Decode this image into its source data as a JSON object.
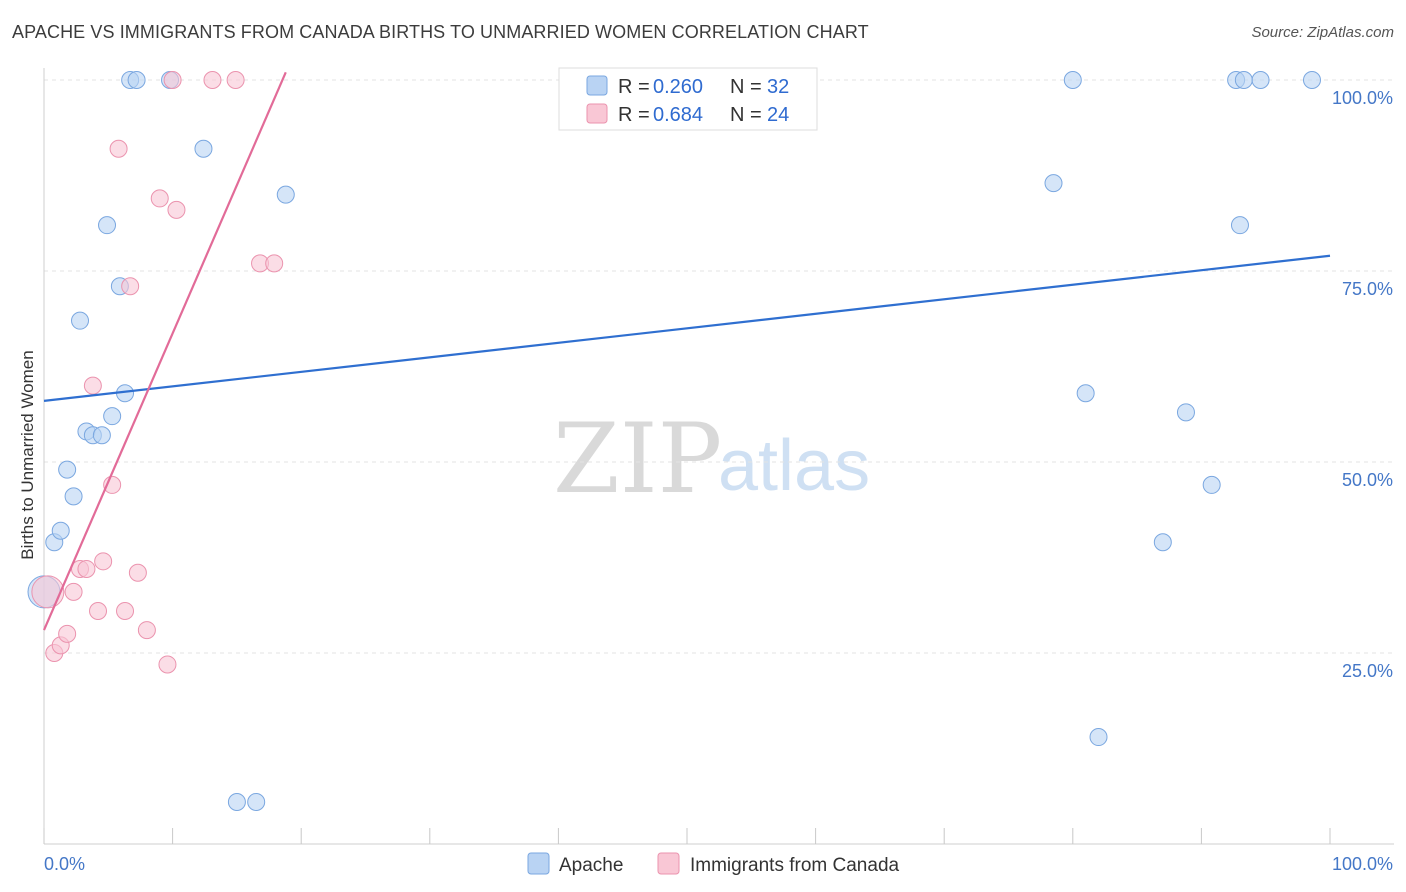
{
  "title": "APACHE VS IMMIGRANTS FROM CANADA BIRTHS TO UNMARRIED WOMEN CORRELATION CHART",
  "source": "Source: ZipAtlas.com",
  "watermark": {
    "zip": "ZIP",
    "atlas": "atlas"
  },
  "colors": {
    "apache_fill": "#b9d3f3",
    "apache_stroke": "#7aa7e0",
    "apache_line": "#2f6fd0",
    "canada_fill": "#f9c7d5",
    "canada_stroke": "#eb93ae",
    "canada_line": "#e26b98"
  },
  "legend": {
    "apache": {
      "r_label": "R =",
      "r_value": "0.260",
      "n_label": "N =",
      "n_value": "32"
    },
    "canada": {
      "r_label": "R =",
      "r_value": "0.684",
      "n_label": "N =",
      "n_value": "24"
    }
  },
  "chart_data": {
    "type": "scatter",
    "title": "APACHE VS IMMIGRANTS FROM CANADA BIRTHS TO UNMARRIED WOMEN CORRELATION CHART",
    "xlabel": "",
    "ylabel": "Births to Unmarried Women",
    "xlim": [
      0,
      100
    ],
    "ylim": [
      0,
      102
    ],
    "x_tick_labels": [
      "0.0%",
      "100.0%"
    ],
    "y_tick_values": [
      25,
      50,
      75,
      100
    ],
    "y_tick_labels": [
      "25.0%",
      "50.0%",
      "75.0%",
      "100.0%"
    ],
    "grid": true,
    "series": [
      {
        "name": "Apache",
        "points": [
          {
            "x": 0.0,
            "y": 33.0
          },
          {
            "x": 0.8,
            "y": 39.5
          },
          {
            "x": 1.3,
            "y": 41.0
          },
          {
            "x": 1.8,
            "y": 49.0
          },
          {
            "x": 2.3,
            "y": 45.5
          },
          {
            "x": 2.8,
            "y": 68.5
          },
          {
            "x": 3.3,
            "y": 54.0
          },
          {
            "x": 3.8,
            "y": 53.5
          },
          {
            "x": 4.5,
            "y": 53.5
          },
          {
            "x": 4.9,
            "y": 81.0
          },
          {
            "x": 5.3,
            "y": 56.0
          },
          {
            "x": 5.9,
            "y": 73.0
          },
          {
            "x": 6.3,
            "y": 59.0
          },
          {
            "x": 6.7,
            "y": 100.0
          },
          {
            "x": 7.2,
            "y": 100.0
          },
          {
            "x": 9.8,
            "y": 100.0
          },
          {
            "x": 12.4,
            "y": 91.0
          },
          {
            "x": 15.0,
            "y": 5.5
          },
          {
            "x": 16.5,
            "y": 5.5
          },
          {
            "x": 18.8,
            "y": 85.0
          },
          {
            "x": 78.5,
            "y": 86.5
          },
          {
            "x": 80.0,
            "y": 100.0
          },
          {
            "x": 81.0,
            "y": 59.0
          },
          {
            "x": 82.0,
            "y": 14.0
          },
          {
            "x": 87.0,
            "y": 39.5
          },
          {
            "x": 88.8,
            "y": 56.5
          },
          {
            "x": 90.8,
            "y": 47.0
          },
          {
            "x": 92.7,
            "y": 100.0
          },
          {
            "x": 93.0,
            "y": 81.0
          },
          {
            "x": 93.3,
            "y": 100.0
          },
          {
            "x": 94.6,
            "y": 100.0
          },
          {
            "x": 98.6,
            "y": 100.0
          }
        ],
        "trend": {
          "x": [
            0,
            100
          ],
          "y": [
            58,
            77
          ]
        }
      },
      {
        "name": "Immigrants from Canada",
        "points": [
          {
            "x": 0.3,
            "y": 33.0
          },
          {
            "x": 0.8,
            "y": 25.0
          },
          {
            "x": 1.3,
            "y": 26.0
          },
          {
            "x": 1.8,
            "y": 27.5
          },
          {
            "x": 2.3,
            "y": 33.0
          },
          {
            "x": 2.8,
            "y": 36.0
          },
          {
            "x": 3.3,
            "y": 36.0
          },
          {
            "x": 3.8,
            "y": 60.0
          },
          {
            "x": 4.2,
            "y": 30.5
          },
          {
            "x": 4.6,
            "y": 37.0
          },
          {
            "x": 5.3,
            "y": 47.0
          },
          {
            "x": 5.8,
            "y": 91.0
          },
          {
            "x": 6.3,
            "y": 30.5
          },
          {
            "x": 6.7,
            "y": 73.0
          },
          {
            "x": 7.3,
            "y": 35.5
          },
          {
            "x": 8.0,
            "y": 28.0
          },
          {
            "x": 9.0,
            "y": 84.5
          },
          {
            "x": 9.6,
            "y": 23.5
          },
          {
            "x": 10.0,
            "y": 100.0
          },
          {
            "x": 10.3,
            "y": 83.0
          },
          {
            "x": 13.1,
            "y": 100.0
          },
          {
            "x": 14.9,
            "y": 100.0
          },
          {
            "x": 16.8,
            "y": 76.0
          },
          {
            "x": 17.9,
            "y": 76.0
          }
        ],
        "trend": {
          "x": [
            0,
            18.8
          ],
          "y": [
            28,
            101
          ]
        }
      }
    ]
  },
  "bottom_legend": {
    "apache": "Apache",
    "canada": "Immigrants from Canada"
  }
}
